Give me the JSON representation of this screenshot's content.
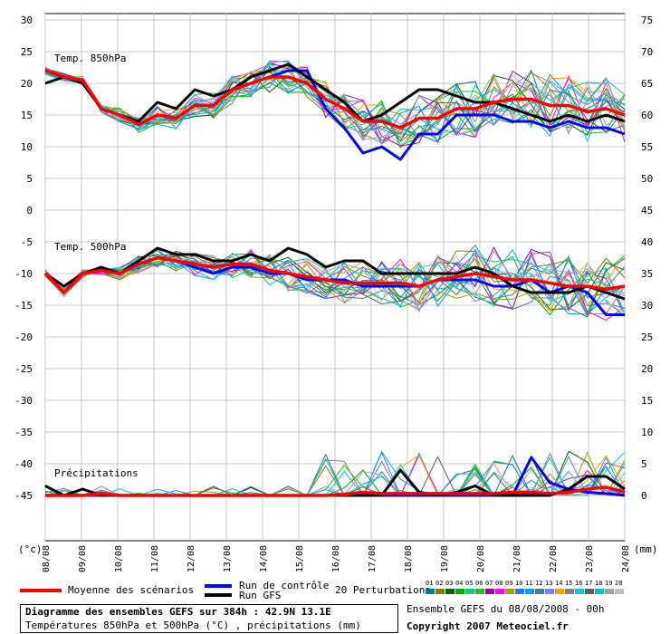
{
  "chart_data": {
    "type": "line",
    "y_left": {
      "ticks": [
        30,
        25,
        20,
        15,
        10,
        5,
        0,
        -5,
        -10,
        -15,
        -20,
        -25,
        -30,
        -35,
        -40,
        -45
      ],
      "range": [
        -45,
        30
      ],
      "unit": "(°c)"
    },
    "y_right": {
      "ticks": [
        75,
        70,
        65,
        60,
        55,
        50,
        45,
        40,
        35,
        30,
        25,
        20,
        15,
        10,
        5,
        0
      ],
      "unit": "(mm)"
    },
    "x_ticks": [
      "08/08",
      "09/08",
      "10/08",
      "11/08",
      "12/08",
      "13/08",
      "14/08",
      "15/08",
      "16/08",
      "17/08",
      "18/08",
      "19/08",
      "20/08",
      "21/08",
      "22/08",
      "23/08",
      "24/08"
    ],
    "grid": true,
    "panel_labels": [
      "Temp. 850hPa",
      "Temp. 500hPa",
      "Précipitations"
    ],
    "series": [
      {
        "name": "Moyenne des scénarios",
        "color": "#ff0000",
        "role": "t850",
        "values": [
          22,
          21,
          20.5,
          16,
          15,
          13.5,
          15,
          14.5,
          16.5,
          16.5,
          19,
          20,
          21,
          21,
          20,
          17.5,
          16,
          14,
          14,
          13,
          14.5,
          14.5,
          16,
          16,
          17,
          17.5,
          17.5,
          16.5,
          16.5,
          15.5,
          16,
          15
        ]
      },
      {
        "name": "Moyenne des scénarios",
        "color": "#ff0000",
        "role": "t500",
        "values": [
          -10,
          -13,
          -10,
          -9.5,
          -10,
          -8.5,
          -7.5,
          -8,
          -8.5,
          -9,
          -8.5,
          -8.5,
          -9.5,
          -10,
          -10.5,
          -11,
          -11.5,
          -11.5,
          -11.5,
          -11.5,
          -12,
          -11,
          -10.5,
          -10,
          -10.5,
          -11,
          -11,
          -11.5,
          -12,
          -12,
          -12.5,
          -12
        ]
      },
      {
        "name": "Moyenne des scénarios",
        "color": "#ff0000",
        "role": "precip",
        "values": [
          0,
          0,
          0,
          0.3,
          0,
          0,
          0,
          0,
          0,
          0,
          0,
          0,
          0,
          0,
          0,
          0,
          0.2,
          0.5,
          0.3,
          0.3,
          0.3,
          0.3,
          0.3,
          0.3,
          0.3,
          0.5,
          0.5,
          0.3,
          0.5,
          1,
          1.3,
          0.5
        ]
      },
      {
        "name": "Run de contrôle",
        "color": "#0000ff",
        "role": "t850",
        "values": [
          22,
          21,
          20.5,
          16,
          15,
          13.5,
          15,
          14.5,
          16.5,
          16.5,
          19,
          20,
          21,
          22,
          22,
          16,
          13,
          9,
          10,
          8,
          12,
          12,
          15,
          15,
          15,
          14,
          14,
          13,
          14,
          13,
          13,
          12
        ]
      },
      {
        "name": "Run de contrôle",
        "color": "#0000ff",
        "role": "t500",
        "values": [
          -10,
          -13,
          -10,
          -9.5,
          -10,
          -8.5,
          -7.5,
          -8,
          -9,
          -10,
          -9,
          -9,
          -10,
          -10,
          -11,
          -11,
          -11,
          -12,
          -12,
          -12,
          -12,
          -11,
          -11,
          -11,
          -12,
          -12,
          -11,
          -13,
          -12,
          -13,
          -16.5,
          -16.5
        ]
      },
      {
        "name": "Run de contrôle",
        "color": "#0000ff",
        "role": "precip",
        "values": [
          0,
          0,
          0,
          0,
          0,
          0,
          0,
          0,
          0,
          0,
          0,
          0,
          0,
          0,
          0,
          0,
          0,
          0,
          0,
          0,
          0,
          0,
          0,
          0,
          0,
          0,
          6,
          2,
          1,
          0.5,
          0.3,
          0
        ]
      },
      {
        "name": "Run GFS",
        "color": "#000000",
        "role": "t850",
        "values": [
          20,
          21,
          20,
          16,
          15,
          14,
          17,
          16,
          19,
          18,
          19,
          21,
          22,
          23,
          21,
          19,
          17,
          14,
          15,
          17,
          19,
          19,
          18,
          17,
          17,
          16,
          15,
          14,
          15,
          14,
          15,
          14
        ]
      },
      {
        "name": "Run GFS",
        "color": "#000000",
        "role": "t500",
        "values": [
          -10,
          -12,
          -10,
          -9,
          -10,
          -8,
          -6,
          -7,
          -7,
          -8,
          -8,
          -7,
          -8,
          -6,
          -7,
          -9,
          -8,
          -8,
          -10,
          -10,
          -10,
          -10,
          -10,
          -9,
          -10,
          -12,
          -13,
          -13,
          -13,
          -12,
          -13,
          -14
        ]
      },
      {
        "name": "Run GFS",
        "color": "#000000",
        "role": "precip",
        "values": [
          1.5,
          0,
          1,
          0,
          0,
          0,
          0,
          0,
          0,
          0,
          0,
          0,
          0,
          0,
          0,
          0,
          0,
          0,
          0,
          4,
          0.5,
          0,
          0.5,
          1.5,
          0,
          0,
          0,
          0,
          1,
          3,
          3,
          1
        ]
      }
    ],
    "perturbation_colors": [
      "#008080",
      "#808000",
      "#006400",
      "#00aa00",
      "#00cc88",
      "#20c020",
      "#a000a0",
      "#ff00ff",
      "#a0a000",
      "#2080ff",
      "#00a0ff",
      "#4080a0",
      "#8080ff",
      "#ffa000",
      "#808080",
      "#00ced1",
      "#606060",
      "#00c0c0",
      "#a0a0a0",
      "#c0c0c0"
    ]
  },
  "legend": {
    "mean_label": "Moyenne des scénarios",
    "control_label": "Run de contrôle",
    "gfs_label": "Run GFS",
    "perturbations_label": "20 Perturbations",
    "perturbation_numbers": [
      "01",
      "02",
      "03",
      "04",
      "05",
      "06",
      "07",
      "08",
      "09",
      "10",
      "11",
      "12",
      "13",
      "14",
      "15",
      "16",
      "17",
      "18",
      "19",
      "20"
    ]
  },
  "footer": {
    "title": "Diagramme des ensembles GEFS sur 384h : 42.9N 13.1E",
    "subtitle": "Températures 850hPa et 500hPa (°C) , précipitations (mm)",
    "run_info": "Ensemble GEFS du 08/08/2008 - 00h",
    "copyright": "Copyright 2007 Meteociel.fr"
  }
}
